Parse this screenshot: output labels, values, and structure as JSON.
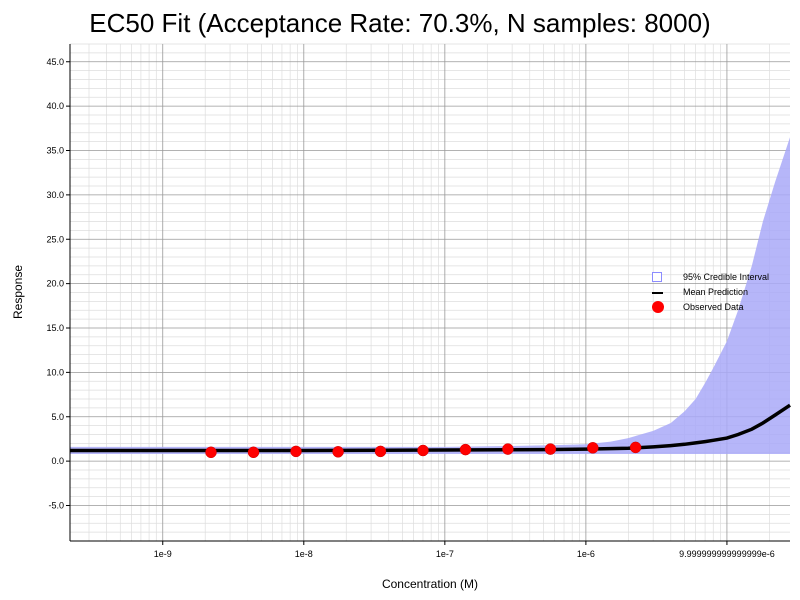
{
  "chart_data": {
    "type": "line",
    "title": "EC50 Fit (Acceptance Rate: 70.3%, N samples: 8000)",
    "xlabel": "Concentration (M)",
    "ylabel": "Response",
    "x_scale": "log",
    "xlim": [
      2.2e-10,
      2.8e-05
    ],
    "ylim": [
      -9,
      47
    ],
    "x_ticks": [
      {
        "value": 1e-09,
        "label": "1e-9"
      },
      {
        "value": 1e-08,
        "label": "1e-8"
      },
      {
        "value": 1e-07,
        "label": "1e-7"
      },
      {
        "value": 1e-06,
        "label": "1e-6"
      },
      {
        "value": 1e-05,
        "label": "9.999999999999999e-6"
      }
    ],
    "y_ticks": [
      {
        "value": -5,
        "label": "-5.0"
      },
      {
        "value": 0,
        "label": "0.0"
      },
      {
        "value": 5,
        "label": "5.0"
      },
      {
        "value": 10,
        "label": "10.0"
      },
      {
        "value": 15,
        "label": "15.0"
      },
      {
        "value": 20,
        "label": "20.0"
      },
      {
        "value": 25,
        "label": "25.0"
      },
      {
        "value": 30,
        "label": "30.0"
      },
      {
        "value": 35,
        "label": "35.0"
      },
      {
        "value": 40,
        "label": "40.0"
      },
      {
        "value": 45,
        "label": "45.0"
      }
    ],
    "grid": true,
    "legend_position": "right",
    "series": [
      {
        "name": "95% Credible Interval",
        "kind": "band",
        "color": "#a9a9f8",
        "x": [
          2.2e-10,
          1e-07,
          3e-07,
          6e-07,
          1e-06,
          1.5e-06,
          2e-06,
          3e-06,
          4e-06,
          5e-06,
          6e-06,
          7e-06,
          8e-06,
          1e-05,
          1.2e-05,
          1.5e-05,
          1.8e-05,
          2.2e-05,
          2.8e-05
        ],
        "lower": [
          0.8,
          0.8,
          0.8,
          0.8,
          0.8,
          0.8,
          0.8,
          0.8,
          0.8,
          0.8,
          0.8,
          0.8,
          0.8,
          0.8,
          0.8,
          0.8,
          0.8,
          0.8,
          0.8
        ],
        "upper": [
          1.6,
          1.6,
          1.7,
          1.8,
          1.9,
          2.2,
          2.6,
          3.4,
          4.3,
          5.6,
          7.0,
          8.8,
          10.5,
          13.5,
          17.0,
          22.0,
          27.0,
          31.5,
          36.5
        ]
      },
      {
        "name": "Mean Prediction",
        "kind": "line",
        "color": "#000000",
        "x": [
          2.2e-10,
          1e-08,
          1e-07,
          5e-07,
          1e-06,
          2e-06,
          3e-06,
          4e-06,
          5e-06,
          6e-06,
          7e-06,
          8e-06,
          1e-05,
          1.2e-05,
          1.5e-05,
          1.8e-05,
          2.2e-05,
          2.8e-05
        ],
        "y": [
          1.2,
          1.2,
          1.25,
          1.3,
          1.35,
          1.45,
          1.6,
          1.75,
          1.9,
          2.05,
          2.2,
          2.35,
          2.6,
          3.0,
          3.6,
          4.3,
          5.2,
          6.3
        ]
      },
      {
        "name": "Observed Data",
        "kind": "scatter",
        "color": "#ff0000",
        "x": [
          2.2e-09,
          4.4e-09,
          8.8e-09,
          1.75e-08,
          3.5e-08,
          7e-08,
          1.4e-07,
          2.8e-07,
          5.6e-07,
          1.12e-06,
          2.25e-06
        ],
        "y": [
          1.0,
          1.0,
          1.1,
          1.05,
          1.1,
          1.2,
          1.3,
          1.35,
          1.35,
          1.5,
          1.55
        ]
      }
    ]
  }
}
